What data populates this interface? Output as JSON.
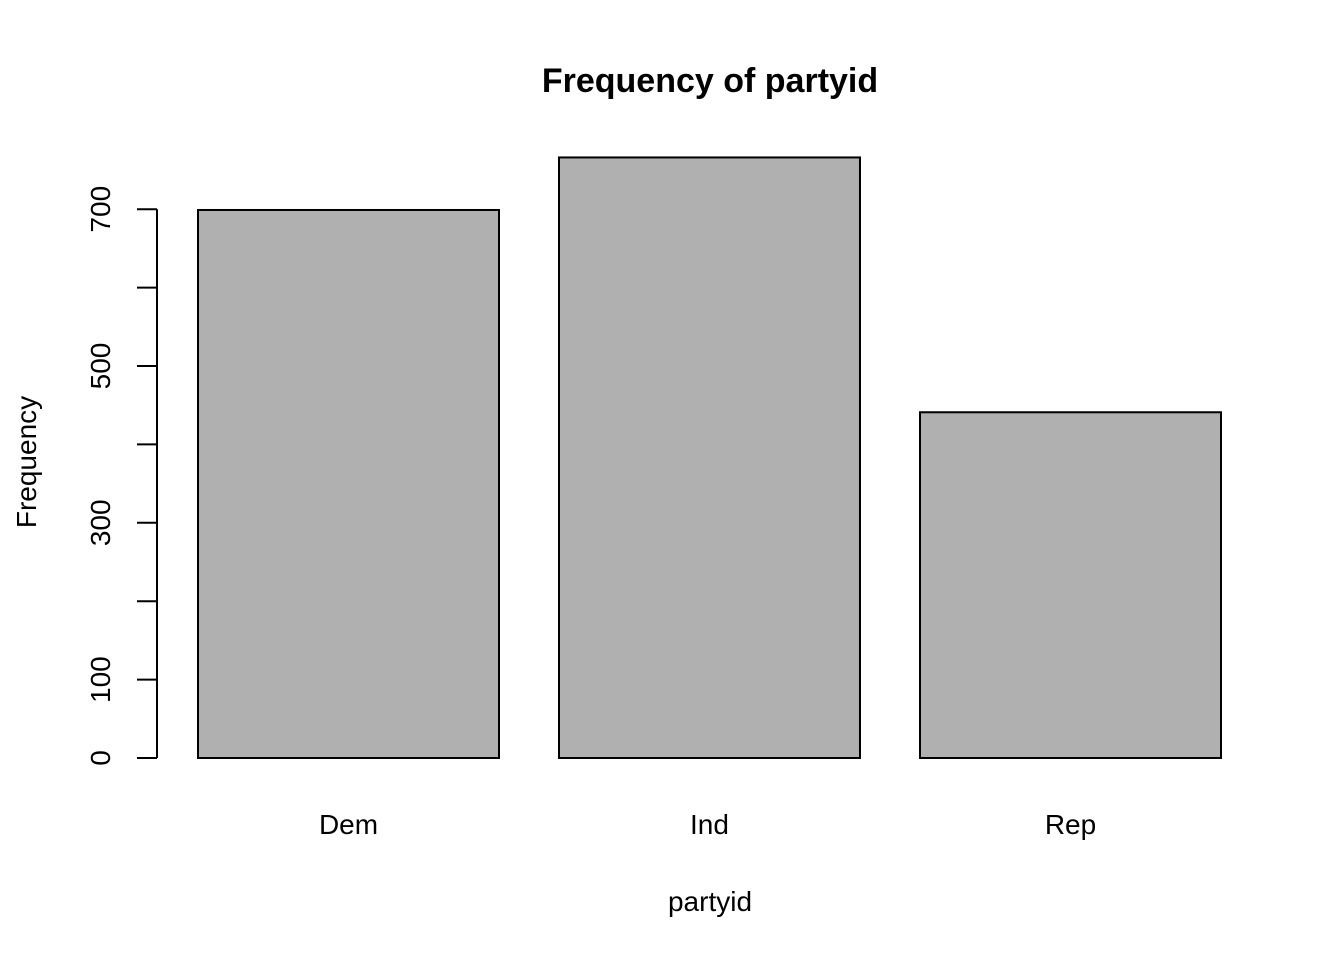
{
  "chart_data": {
    "type": "bar",
    "title": "Frequency of partyid",
    "xlabel": "partyid",
    "ylabel": "Frequency",
    "categories": [
      "Dem",
      "Ind",
      "Rep"
    ],
    "values": [
      699,
      766,
      441
    ],
    "ylim": [
      0,
      766
    ],
    "yticks": [
      0,
      100,
      200,
      300,
      400,
      500,
      600,
      700
    ],
    "ytick_labels": [
      "0",
      "100",
      "",
      "300",
      "",
      "500",
      "",
      "700"
    ],
    "bar_color": "#b0b0b0",
    "grid": false,
    "legend": "none"
  }
}
